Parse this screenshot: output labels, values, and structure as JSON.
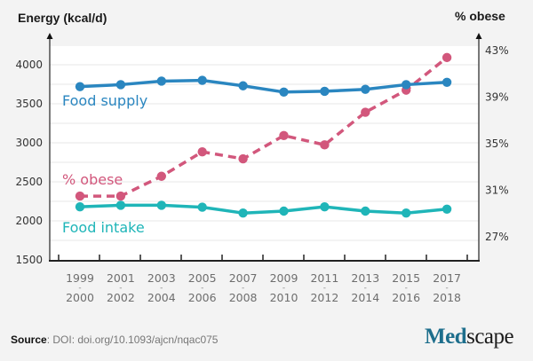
{
  "chart_data": {
    "type": "line",
    "title": "",
    "ylabel": "Energy (kcal/d)",
    "y2label": "% obese",
    "xlabel": "",
    "categories": [
      [
        "1999",
        "2000"
      ],
      [
        "2001",
        "2002"
      ],
      [
        "2003",
        "2004"
      ],
      [
        "2005",
        "2006"
      ],
      [
        "2007",
        "2008"
      ],
      [
        "2009",
        "2010"
      ],
      [
        "2011",
        "2012"
      ],
      [
        "2013",
        "2014"
      ],
      [
        "2015",
        "2016"
      ],
      [
        "2017",
        "2018"
      ]
    ],
    "category_separator": "-",
    "ylim": [
      1500,
      4250
    ],
    "y_ticks": [
      1500,
      2000,
      2500,
      3000,
      3500,
      4000
    ],
    "y_grid_step": 250,
    "y2lim": [
      25,
      44.5
    ],
    "y2_ticks": [
      27,
      31,
      35,
      39,
      43
    ],
    "y2_tick_suffix": "%",
    "grid": true,
    "legend": "inline-left",
    "series": [
      {
        "name": "Food supply",
        "axis": "left",
        "color": "#2a86c0",
        "style": "solid",
        "values": [
          3720,
          3745,
          3790,
          3800,
          3730,
          3650,
          3660,
          3685,
          3745,
          3775
        ]
      },
      {
        "name": "% obese",
        "axis": "right",
        "color": "#d2577c",
        "style": "dashed",
        "values": [
          30.5,
          30.5,
          32.2,
          34.3,
          33.7,
          35.7,
          34.9,
          37.7,
          39.6,
          42.4
        ]
      },
      {
        "name": "Food intake",
        "axis": "left",
        "color": "#1fb5b8",
        "style": "solid",
        "values": [
          2180,
          2200,
          2200,
          2175,
          2100,
          2125,
          2180,
          2125,
          2100,
          2150
        ]
      }
    ]
  },
  "footer": {
    "source_label": "Source",
    "source_text": ": DOI:  doi.org/10.1093/ajcn/nqac075",
    "logo_part1": "Med",
    "logo_part2": "scape"
  }
}
